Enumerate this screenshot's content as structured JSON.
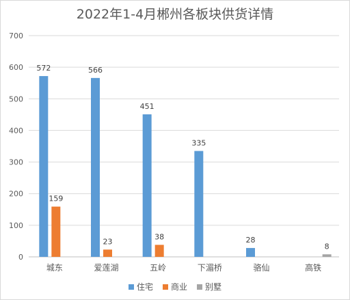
{
  "chart_data": {
    "type": "bar",
    "title": "2022年1-4月郴州各板块供货详情",
    "categories": [
      "城东",
      "爱莲湖",
      "五岭",
      "下湄桥",
      "骆仙",
      "高铁"
    ],
    "series": [
      {
        "name": "住宅",
        "color": "#5b9bd5",
        "values": [
          572,
          566,
          451,
          335,
          28,
          null
        ]
      },
      {
        "name": "商业",
        "color": "#ed7d31",
        "values": [
          159,
          23,
          38,
          null,
          null,
          null
        ]
      },
      {
        "name": "别墅",
        "color": "#a5a5a5",
        "values": [
          null,
          null,
          null,
          null,
          null,
          8
        ]
      }
    ],
    "ylim": [
      0,
      700
    ],
    "yticks": [
      0,
      100,
      200,
      300,
      400,
      500,
      600,
      700
    ],
    "grid": true,
    "legend": "bottom"
  }
}
